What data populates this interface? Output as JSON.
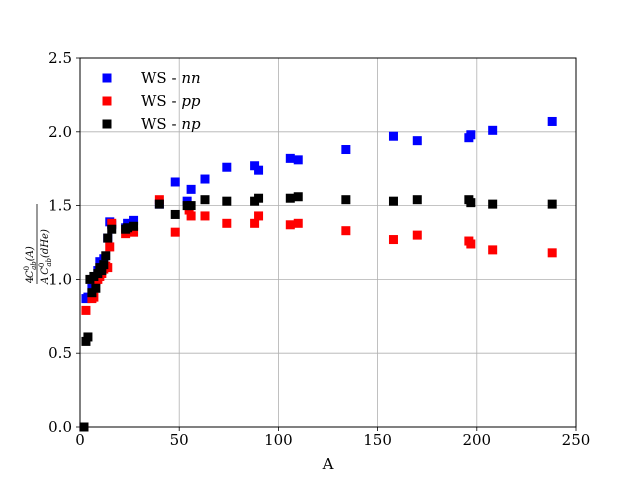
{
  "chart_data": {
    "type": "scatter",
    "xlabel": "A",
    "ylabel": {
      "coef": "4",
      "num": "C",
      "num_sup": "0",
      "num_sub": "ab",
      "num_arg": "(A)",
      "den_pre": "A",
      "den": "C",
      "den_sup": "0",
      "den_sub": "ab",
      "den_arg": "(dHe)"
    },
    "xlim": [
      0,
      250
    ],
    "ylim": [
      0.0,
      2.5
    ],
    "xticks": [
      "0",
      "50",
      "100",
      "150",
      "200",
      "250"
    ],
    "yticks": [
      "0.0",
      "0.5",
      "1.0",
      "1.5",
      "2.0",
      "2.5"
    ],
    "xtick_values": [
      0,
      50,
      100,
      150,
      200,
      250
    ],
    "ytick_values": [
      0.0,
      0.5,
      1.0,
      1.5,
      2.0,
      2.5
    ],
    "grid": true,
    "legend_position": "top-left",
    "series": [
      {
        "name": "WS - nn",
        "label_prefix": "WS - ",
        "label_math": "nn",
        "color": "#0000ff",
        "x": [
          2,
          3,
          4,
          6,
          7,
          9,
          10,
          11,
          12,
          14,
          15,
          16,
          23,
          24,
          27,
          40,
          48,
          54,
          56,
          63,
          74,
          88,
          90,
          106,
          110,
          134,
          158,
          170,
          196,
          197,
          208,
          238
        ],
        "y": [
          0.0,
          0.87,
          0.88,
          0.94,
          1.0,
          1.06,
          1.12,
          1.1,
          1.14,
          1.28,
          1.39,
          1.37,
          1.35,
          1.38,
          1.4,
          1.51,
          1.66,
          1.53,
          1.61,
          1.68,
          1.76,
          1.77,
          1.74,
          1.82,
          1.81,
          1.88,
          1.97,
          1.94,
          1.96,
          1.98,
          2.01,
          2.07
        ]
      },
      {
        "name": "WS - pp",
        "label_prefix": "WS - ",
        "label_math": "pp",
        "color": "#ff0000",
        "x": [
          2,
          3,
          6,
          7,
          8,
          9,
          10,
          11,
          12,
          13,
          14,
          15,
          16,
          23,
          24,
          27,
          40,
          48,
          55,
          56,
          63,
          74,
          88,
          90,
          106,
          110,
          134,
          158,
          170,
          196,
          197,
          208,
          238
        ],
        "y": [
          0.0,
          0.79,
          0.87,
          0.88,
          0.99,
          1.0,
          1.02,
          1.04,
          1.07,
          1.09,
          1.08,
          1.22,
          1.38,
          1.31,
          1.33,
          1.32,
          1.54,
          1.32,
          1.47,
          1.43,
          1.43,
          1.38,
          1.38,
          1.43,
          1.37,
          1.38,
          1.33,
          1.27,
          1.3,
          1.26,
          1.24,
          1.2,
          1.18
        ]
      },
      {
        "name": "WS - np",
        "label_prefix": "WS - ",
        "label_math": "np",
        "color": "#000000",
        "x": [
          2,
          3,
          4,
          5,
          6,
          7,
          8,
          9,
          10,
          11,
          12,
          13,
          14,
          16,
          23,
          24,
          27,
          40,
          48,
          54,
          56,
          63,
          74,
          88,
          90,
          106,
          110,
          134,
          158,
          170,
          196,
          197,
          208,
          238
        ],
        "y": [
          0.0,
          0.58,
          0.61,
          1.0,
          0.91,
          1.02,
          0.94,
          1.04,
          1.08,
          1.06,
          1.1,
          1.16,
          1.28,
          1.34,
          1.34,
          1.35,
          1.36,
          1.51,
          1.44,
          1.5,
          1.5,
          1.54,
          1.53,
          1.53,
          1.55,
          1.55,
          1.56,
          1.54,
          1.53,
          1.54,
          1.54,
          1.52,
          1.51,
          1.51
        ]
      }
    ]
  }
}
